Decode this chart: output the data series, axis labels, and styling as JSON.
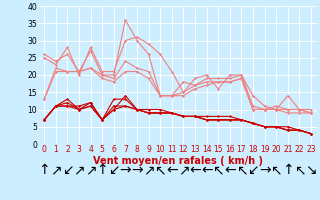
{
  "xlabel": "Vent moyen/en rafales ( km/h )",
  "bg_color": "#cceeff",
  "grid_color": "#ffffff",
  "ylim": [
    0,
    40
  ],
  "xlim": [
    -0.5,
    23.5
  ],
  "yticks": [
    0,
    5,
    10,
    15,
    20,
    25,
    30,
    35,
    40
  ],
  "xticks": [
    0,
    1,
    2,
    3,
    4,
    5,
    6,
    7,
    8,
    9,
    10,
    11,
    12,
    13,
    14,
    15,
    16,
    17,
    18,
    19,
    20,
    21,
    22,
    23
  ],
  "line_light1": [
    25,
    23,
    28,
    20,
    28,
    21,
    21,
    30,
    31,
    29,
    26,
    21,
    15,
    19,
    20,
    16,
    20,
    20,
    14,
    11,
    10,
    14,
    10,
    9
  ],
  "line_light2": [
    26,
    24,
    26,
    21,
    27,
    20,
    20,
    36,
    30,
    26,
    14,
    14,
    18,
    17,
    19,
    19,
    19,
    20,
    11,
    10,
    11,
    10,
    10,
    10
  ],
  "line_light3": [
    13,
    22,
    21,
    21,
    22,
    20,
    19,
    24,
    22,
    21,
    14,
    14,
    15,
    17,
    18,
    18,
    18,
    19,
    10,
    10,
    10,
    10,
    10,
    9
  ],
  "line_light4": [
    13,
    21,
    21,
    21,
    22,
    19,
    18,
    21,
    21,
    19,
    14,
    14,
    14,
    16,
    17,
    18,
    18,
    19,
    10,
    10,
    10,
    9,
    9,
    9
  ],
  "line_dark1": [
    7,
    11,
    11,
    11,
    12,
    7,
    13,
    13,
    10,
    10,
    10,
    9,
    8,
    8,
    8,
    8,
    8,
    7,
    6,
    5,
    5,
    5,
    4,
    3
  ],
  "line_dark2": [
    7,
    11,
    11,
    10,
    11,
    7,
    11,
    11,
    10,
    9,
    9,
    9,
    8,
    8,
    7,
    7,
    7,
    7,
    6,
    5,
    5,
    4,
    4,
    3
  ],
  "line_dark3": [
    7,
    11,
    13,
    10,
    12,
    7,
    10,
    14,
    10,
    9,
    9,
    9,
    8,
    8,
    7,
    7,
    7,
    7,
    6,
    5,
    5,
    4,
    4,
    3
  ],
  "line_dark4": [
    7,
    11,
    12,
    10,
    11,
    7,
    10,
    11,
    10,
    9,
    9,
    9,
    8,
    8,
    7,
    7,
    7,
    7,
    6,
    5,
    5,
    4,
    4,
    3
  ],
  "light_color": "#f08080",
  "dark_color": "#cc0000",
  "marker": "D",
  "markersize": 1.5,
  "linewidth": 0.8,
  "xlabel_fontsize": 7,
  "tick_fontsize": 5.5,
  "arrows": [
    "↑",
    "↗",
    "↙",
    "↗",
    "↗",
    "↑",
    "↙",
    "→",
    "→",
    "↗",
    "↖",
    "←",
    "↗",
    "←",
    "←",
    "↖",
    "←",
    "↖",
    "↙",
    "→",
    "↖",
    "↑",
    "↖",
    "↘"
  ]
}
